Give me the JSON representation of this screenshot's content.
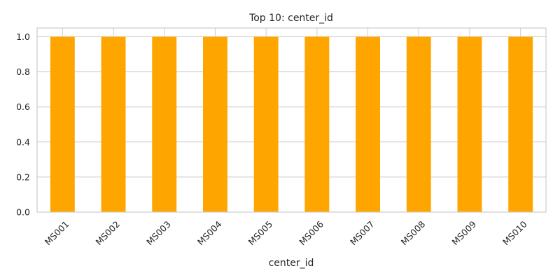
{
  "chart_data": {
    "type": "bar",
    "title": "Top 10: center_id",
    "xlabel": "center_id",
    "ylabel": "",
    "categories": [
      "MS001",
      "MS002",
      "MS003",
      "MS004",
      "MS005",
      "MS006",
      "MS007",
      "MS008",
      "MS009",
      "MS010"
    ],
    "values": [
      1.0,
      1.0,
      1.0,
      1.0,
      1.0,
      1.0,
      1.0,
      1.0,
      1.0,
      1.0
    ],
    "ylim": [
      0,
      1.05
    ],
    "yticks": [
      "0.0",
      "0.2",
      "0.4",
      "0.6",
      "0.8",
      "1.0"
    ],
    "grid": true,
    "legend": "none",
    "bar_color": "#FFA500",
    "grid_color": "#CCCCCC"
  }
}
